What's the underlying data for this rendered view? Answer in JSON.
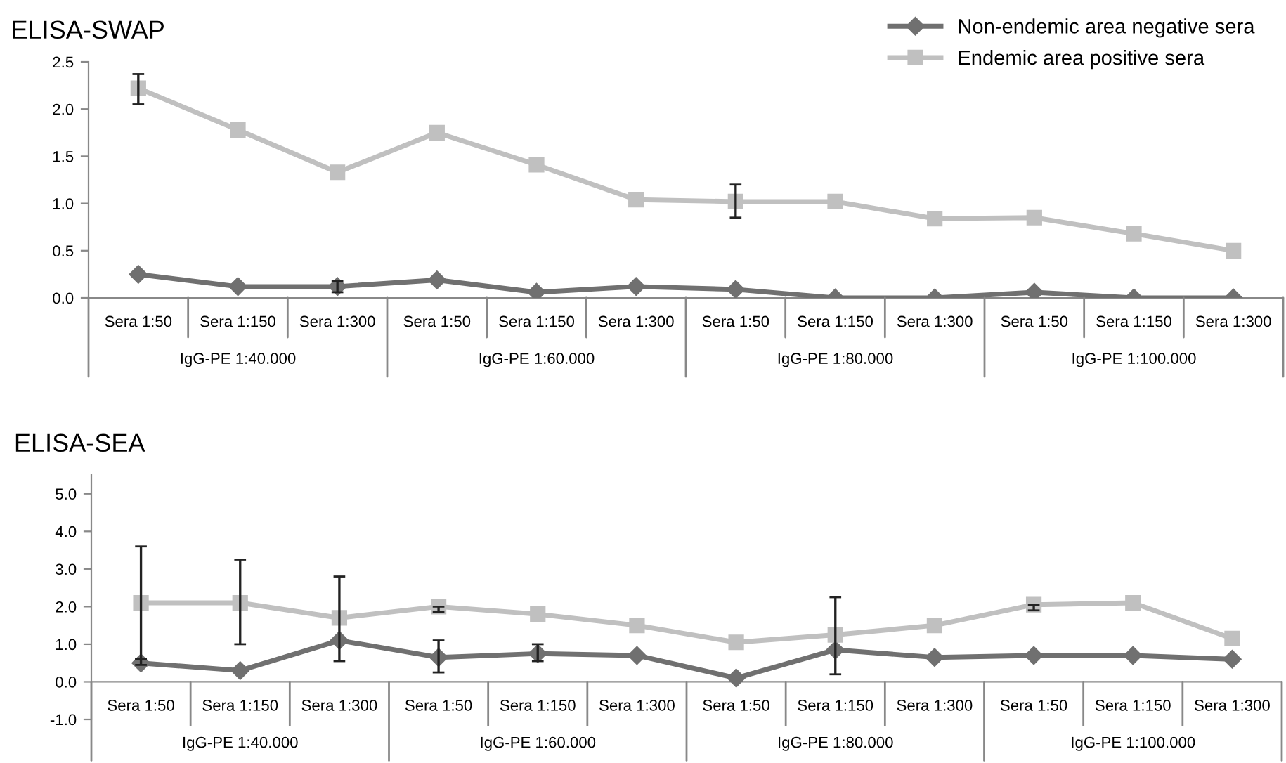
{
  "chart_data": [
    {
      "type": "line",
      "title": "ELISA-SWAP",
      "categories": [
        "Sera 1:50",
        "Sera 1:150",
        "Sera 1:300",
        "Sera 1:50",
        "Sera 1:150",
        "Sera 1:300",
        "Sera 1:50",
        "Sera 1:150",
        "Sera 1:300",
        "Sera 1:50",
        "Sera 1:150",
        "Sera 1:300"
      ],
      "annotations": [
        "IgG-PE 1:40.000",
        "IgG-PE 1:60.000",
        "IgG-PE 1:80.000",
        "IgG-PE 1:100.000"
      ],
      "series": [
        {
          "name": "Non-endemic area negative sera",
          "color": "#707070",
          "marker": "diamond",
          "values": [
            0.25,
            0.12,
            0.12,
            0.19,
            0.06,
            0.12,
            0.09,
            0.0,
            0.0,
            0.06,
            0.0,
            0.0
          ],
          "errors": [
            null,
            null,
            [
              0.06,
              0.18
            ],
            null,
            null,
            null,
            null,
            null,
            null,
            null,
            null,
            null
          ]
        },
        {
          "name": "Endemic area positive sera",
          "color": "#c0c0c0",
          "marker": "square",
          "values": [
            2.22,
            1.78,
            1.33,
            1.75,
            1.41,
            1.04,
            1.02,
            1.02,
            0.84,
            0.85,
            0.68,
            0.5
          ],
          "errors": [
            [
              2.05,
              2.37
            ],
            null,
            null,
            null,
            null,
            null,
            [
              0.85,
              1.2
            ],
            null,
            null,
            null,
            null,
            null
          ]
        }
      ],
      "ylim": [
        0,
        2.5
      ],
      "yticks": [
        {
          "value": 0,
          "label": "0.0"
        },
        {
          "value": 0.5,
          "label": "0.5"
        },
        {
          "value": 1,
          "label": "1.0"
        },
        {
          "value": 1.5,
          "label": "1.5"
        },
        {
          "value": 2,
          "label": "2.0"
        },
        {
          "value": 2.5,
          "label": "2.5"
        }
      ],
      "legend": "top right",
      "grid": false
    },
    {
      "type": "line",
      "title": "ELISA-SEA",
      "categories": [
        "Sera 1:50",
        "Sera 1:150",
        "Sera 1:300",
        "Sera 1:50",
        "Sera 1:150",
        "Sera 1:300",
        "Sera 1:50",
        "Sera 1:150",
        "Sera 1:300",
        "Sera 1:50",
        "Sera 1:150",
        "Sera 1:300"
      ],
      "annotations": [
        "IgG-PE 1:40.000",
        "IgG-PE 1:60.000",
        "IgG-PE 1:80.000",
        "IgG-PE 1:100.000"
      ],
      "series": [
        {
          "color": "#707070",
          "marker": "diamond",
          "values": [
            0.5,
            0.3,
            1.1,
            0.65,
            0.75,
            0.7,
            0.1,
            0.85,
            0.65,
            0.7,
            0.7,
            0.6
          ],
          "errors": [
            [
              0.45,
              0.6
            ],
            null,
            null,
            [
              0.25,
              1.1
            ],
            [
              0.55,
              1.0
            ],
            null,
            null,
            null,
            null,
            null,
            null,
            null
          ]
        },
        {
          "color": "#c0c0c0",
          "marker": "square",
          "values": [
            2.1,
            2.1,
            1.7,
            2.0,
            1.8,
            1.5,
            1.05,
            1.25,
            1.5,
            2.05,
            2.1,
            1.15
          ],
          "errors": [
            [
              0.6,
              3.6
            ],
            [
              1.0,
              3.25
            ],
            [
              0.55,
              2.8
            ],
            [
              1.85,
              2.0
            ],
            null,
            null,
            null,
            [
              0.2,
              2.25
            ],
            null,
            [
              1.9,
              2.05
            ],
            null,
            null
          ]
        }
      ],
      "ylim": [
        -1.0,
        5.5
      ],
      "yticks": [
        {
          "value": -1,
          "label": "-1.0"
        },
        {
          "value": 0,
          "label": "0.0"
        },
        {
          "value": 1,
          "label": "1.0"
        },
        {
          "value": 2,
          "label": "2.0"
        },
        {
          "value": 3,
          "label": "3.0"
        },
        {
          "value": 4,
          "label": "4.0"
        },
        {
          "value": 5,
          "label": "5.0"
        }
      ],
      "legend": false,
      "grid": false
    }
  ]
}
